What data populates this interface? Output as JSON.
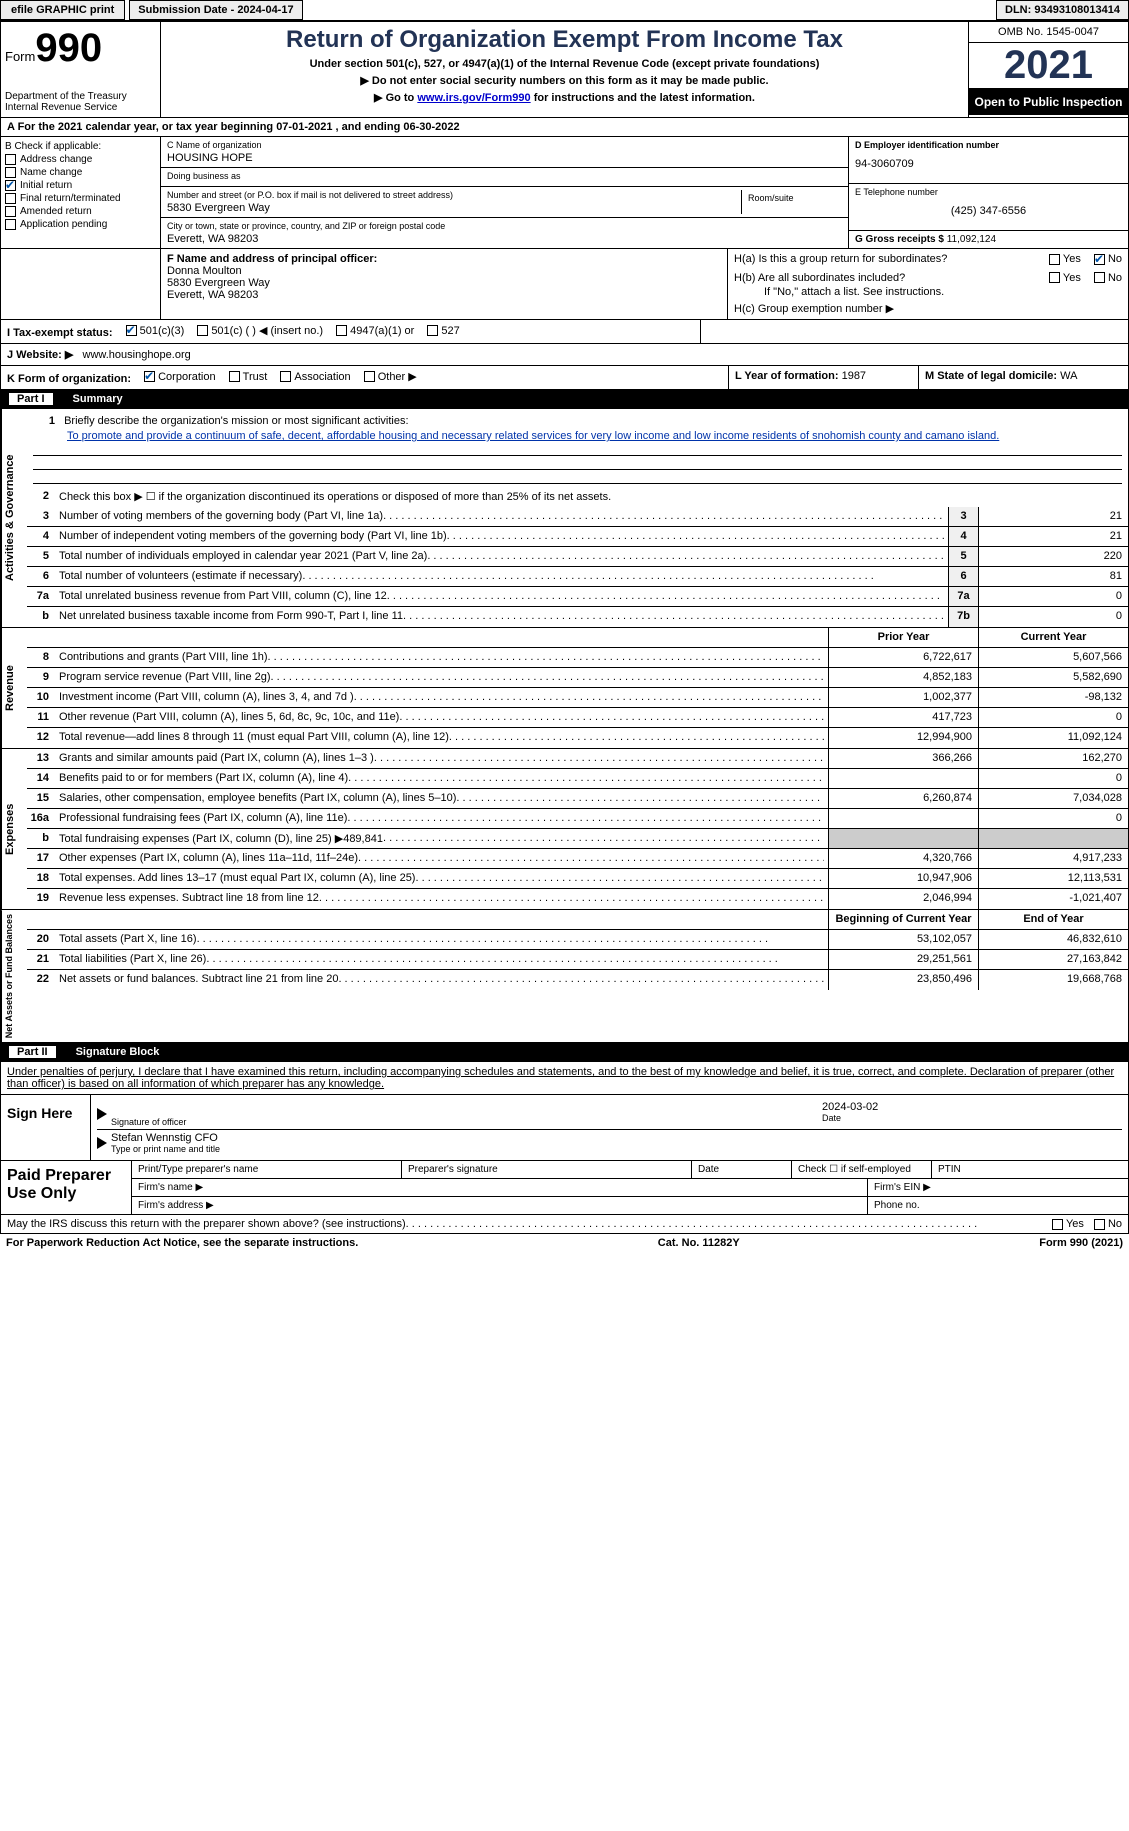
{
  "topbar": {
    "efile": "efile GRAPHIC print",
    "submission": "Submission Date - 2024-04-17",
    "dln": "DLN: 93493108013414"
  },
  "header": {
    "form_label": "Form",
    "form_number": "990",
    "dept": "Department of the Treasury",
    "irs": "Internal Revenue Service",
    "title": "Return of Organization Exempt From Income Tax",
    "subtitle": "Under section 501(c), 527, or 4947(a)(1) of the Internal Revenue Code (except private foundations)",
    "instr1": "▶ Do not enter social security numbers on this form as it may be made public.",
    "instr2": "▶ Go to ",
    "instr2_link": "www.irs.gov/Form990",
    "instr2_suffix": " for instructions and the latest information.",
    "omb": "OMB No. 1545-0047",
    "year": "2021",
    "open_public": "Open to Public Inspection"
  },
  "row_a": "A For the 2021 calendar year, or tax year beginning 07-01-2021   , and ending 06-30-2022",
  "section_b": {
    "label": "B Check if applicable:",
    "items": [
      {
        "label": "Address change",
        "checked": false
      },
      {
        "label": "Name change",
        "checked": false
      },
      {
        "label": "Initial return",
        "checked": true
      },
      {
        "label": "Final return/terminated",
        "checked": false
      },
      {
        "label": "Amended return",
        "checked": false
      },
      {
        "label": "Application pending",
        "checked": false
      }
    ]
  },
  "section_c": {
    "name_label": "C Name of organization",
    "name": "HOUSING HOPE",
    "dba_label": "Doing business as",
    "dba": "",
    "addr_label": "Number and street (or P.O. box if mail is not delivered to street address)",
    "room_label": "Room/suite",
    "addr": "5830 Evergreen Way",
    "city_label": "City or town, state or province, country, and ZIP or foreign postal code",
    "city": "Everett, WA  98203"
  },
  "section_d": {
    "ein_label": "D Employer identification number",
    "ein": "94-3060709",
    "phone_label": "E Telephone number",
    "phone": "(425) 347-6556",
    "gross_label": "G Gross receipts $",
    "gross": "11,092,124"
  },
  "section_f": {
    "label": "F  Name and address of principal officer:",
    "name": "Donna Moulton",
    "addr1": "5830 Evergreen Way",
    "addr2": "Everett, WA  98203"
  },
  "section_h": {
    "ha": "H(a)  Is this a group return for subordinates?",
    "hb": "H(b)  Are all subordinates included?",
    "hb_note": "If \"No,\" attach a list. See instructions.",
    "hc": "H(c)  Group exemption number ▶",
    "yes": "Yes",
    "no": "No"
  },
  "row_i": {
    "label": "I  Tax-exempt status:",
    "opt1": "501(c)(3)",
    "opt2": "501(c) (  ) ◀ (insert no.)",
    "opt3": "4947(a)(1) or",
    "opt4": "527"
  },
  "row_j": {
    "label": "J  Website: ▶",
    "value": "www.housinghope.org"
  },
  "row_k": {
    "label": "K Form of organization:",
    "opts": [
      "Corporation",
      "Trust",
      "Association",
      "Other ▶"
    ]
  },
  "row_l": {
    "year_label": "L Year of formation:",
    "year": "1987",
    "state_label": "M State of legal domicile:",
    "state": "WA"
  },
  "part1": {
    "header_num": "Part I",
    "header_title": "Summary",
    "line1_label": "Briefly describe the organization's mission or most significant activities:",
    "line1_text": "To promote and provide a continuum of safe, decent, affordable housing and necessary related services for very low income and low income residents of snohomish county and camano island.",
    "line2": "Check this box ▶ ☐  if the organization discontinued its operations or disposed of more than 25% of its net assets.",
    "vert_activities": "Activities & Governance",
    "vert_revenue": "Revenue",
    "vert_expenses": "Expenses",
    "vert_netassets": "Net Assets or Fund Balances",
    "lines_single": [
      {
        "num": "3",
        "text": "Number of voting members of the governing body (Part VI, line 1a)",
        "box": "3",
        "val": "21"
      },
      {
        "num": "4",
        "text": "Number of independent voting members of the governing body (Part VI, line 1b)",
        "box": "4",
        "val": "21"
      },
      {
        "num": "5",
        "text": "Total number of individuals employed in calendar year 2021 (Part V, line 2a)",
        "box": "5",
        "val": "220"
      },
      {
        "num": "6",
        "text": "Total number of volunteers (estimate if necessary)",
        "box": "6",
        "val": "81"
      },
      {
        "num": "7a",
        "text": "Total unrelated business revenue from Part VIII, column (C), line 12",
        "box": "7a",
        "val": "0"
      },
      {
        "num": "b",
        "text": "Net unrelated business taxable income from Form 990-T, Part I, line 11",
        "box": "7b",
        "val": "0"
      }
    ],
    "col_headers": {
      "prior": "Prior Year",
      "current": "Current Year",
      "begin": "Beginning of Current Year",
      "end": "End of Year"
    },
    "revenue_lines": [
      {
        "num": "8",
        "text": "Contributions and grants (Part VIII, line 1h)",
        "prior": "6,722,617",
        "current": "5,607,566"
      },
      {
        "num": "9",
        "text": "Program service revenue (Part VIII, line 2g)",
        "prior": "4,852,183",
        "current": "5,582,690"
      },
      {
        "num": "10",
        "text": "Investment income (Part VIII, column (A), lines 3, 4, and 7d )",
        "prior": "1,002,377",
        "current": "-98,132"
      },
      {
        "num": "11",
        "text": "Other revenue (Part VIII, column (A), lines 5, 6d, 8c, 9c, 10c, and 11e)",
        "prior": "417,723",
        "current": "0"
      },
      {
        "num": "12",
        "text": "Total revenue—add lines 8 through 11 (must equal Part VIII, column (A), line 12)",
        "prior": "12,994,900",
        "current": "11,092,124"
      }
    ],
    "expense_lines": [
      {
        "num": "13",
        "text": "Grants and similar amounts paid (Part IX, column (A), lines 1–3 )",
        "prior": "366,266",
        "current": "162,270"
      },
      {
        "num": "14",
        "text": "Benefits paid to or for members (Part IX, column (A), line 4)",
        "prior": "",
        "current": "0"
      },
      {
        "num": "15",
        "text": "Salaries, other compensation, employee benefits (Part IX, column (A), lines 5–10)",
        "prior": "6,260,874",
        "current": "7,034,028"
      },
      {
        "num": "16a",
        "text": "Professional fundraising fees (Part IX, column (A), line 11e)",
        "prior": "",
        "current": "0"
      },
      {
        "num": "b",
        "text": "Total fundraising expenses (Part IX, column (D), line 25) ▶489,841",
        "prior": "shaded",
        "current": "shaded"
      },
      {
        "num": "17",
        "text": "Other expenses (Part IX, column (A), lines 11a–11d, 11f–24e)",
        "prior": "4,320,766",
        "current": "4,917,233"
      },
      {
        "num": "18",
        "text": "Total expenses. Add lines 13–17 (must equal Part IX, column (A), line 25)",
        "prior": "10,947,906",
        "current": "12,113,531"
      },
      {
        "num": "19",
        "text": "Revenue less expenses. Subtract line 18 from line 12",
        "prior": "2,046,994",
        "current": "-1,021,407"
      }
    ],
    "netassets_lines": [
      {
        "num": "20",
        "text": "Total assets (Part X, line 16)",
        "prior": "53,102,057",
        "current": "46,832,610"
      },
      {
        "num": "21",
        "text": "Total liabilities (Part X, line 26)",
        "prior": "29,251,561",
        "current": "27,163,842"
      },
      {
        "num": "22",
        "text": "Net assets or fund balances. Subtract line 21 from line 20",
        "prior": "23,850,496",
        "current": "19,668,768"
      }
    ]
  },
  "part2": {
    "header_num": "Part II",
    "header_title": "Signature Block",
    "declaration": "Under penalties of perjury, I declare that I have examined this return, including accompanying schedules and statements, and to the best of my knowledge and belief, it is true, correct, and complete. Declaration of preparer (other than officer) is based on all information of which preparer has any knowledge.",
    "sign_here": "Sign Here",
    "sig_officer": "Signature of officer",
    "sig_date": "2024-03-02",
    "date_label": "Date",
    "officer_name": "Stefan Wennstig CFO",
    "officer_sub": "Type or print name and title",
    "paid_prep": "Paid Preparer Use Only",
    "prep_name_label": "Print/Type preparer's name",
    "prep_sig_label": "Preparer's signature",
    "prep_date_label": "Date",
    "prep_check": "Check ☐ if self-employed",
    "ptin": "PTIN",
    "firm_name": "Firm's name    ▶",
    "firm_ein": "Firm's EIN ▶",
    "firm_addr": "Firm's address ▶",
    "phone": "Phone no."
  },
  "footer": {
    "discuss": "May the IRS discuss this return with the preparer shown above? (see instructions)",
    "yes": "Yes",
    "no": "No",
    "paperwork": "For Paperwork Reduction Act Notice, see the separate instructions.",
    "cat": "Cat. No. 11282Y",
    "form": "Form 990 (2021)"
  }
}
